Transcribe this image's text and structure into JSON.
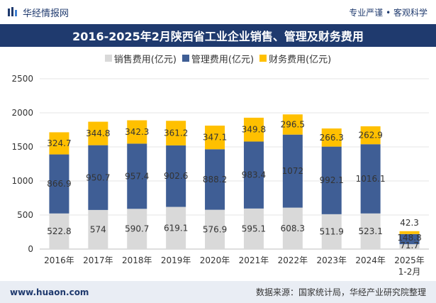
{
  "header": {
    "brand": "华经情报网",
    "tagline": "专业严谨 • 客观科学"
  },
  "chart_data": {
    "type": "bar",
    "stacked": true,
    "title": "2016-2025年2月陕西省工业企业销售、管理及财务费用",
    "categories": [
      "2016年",
      "2017年",
      "2018年",
      "2019年",
      "2020年",
      "2021年",
      "2022年",
      "2023年",
      "2024年",
      "2025年\n1-2月"
    ],
    "series": [
      {
        "name": "销售费用(亿元)",
        "color": "#d9d9d9",
        "values": [
          522.8,
          574,
          590.7,
          619.1,
          576.9,
          595.1,
          608.3,
          511.9,
          523.1,
          71.7
        ]
      },
      {
        "name": "管理费用(亿元)",
        "color": "#3f5e95",
        "values": [
          866.9,
          950.7,
          957.4,
          902.6,
          888.2,
          983.4,
          1072,
          992.1,
          1016.1,
          148.8
        ]
      },
      {
        "name": "财务费用(亿元)",
        "color": "#ffc000",
        "values": [
          324.7,
          344.8,
          342.3,
          361.2,
          347.1,
          349.8,
          296.5,
          266.3,
          262.9,
          42.3
        ]
      }
    ],
    "ylim": [
      0,
      2500
    ],
    "yticks": [
      0,
      500,
      1000,
      1500,
      2000,
      2500
    ],
    "legend_position": "top-center"
  },
  "footer": {
    "url": "www.huaon.com",
    "source": "数据来源：国家统计局，华经产业研究院整理"
  }
}
